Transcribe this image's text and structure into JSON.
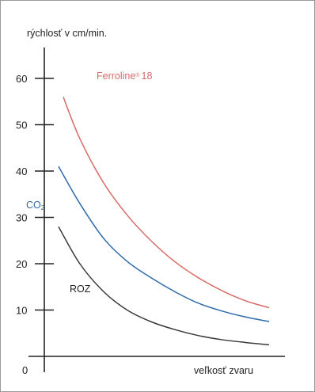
{
  "chart_data": {
    "type": "line",
    "ylabel": "rýchlosť v cm/min.",
    "xlabel": "veľkosť zvaru",
    "origin_label": "0",
    "yticks": [
      10,
      20,
      30,
      40,
      50,
      60
    ],
    "ylim": [
      0,
      65
    ],
    "xlim": [
      0,
      10
    ],
    "series": [
      {
        "name": "Ferroline® 18",
        "label_main": "Ferroline",
        "label_sup": "®",
        "label_tail": "18",
        "color": "#d76b67",
        "x": [
          0.8,
          1.5,
          2.5,
          3.5,
          4.5,
          5.5,
          6.5,
          7.5,
          8.5,
          9.5
        ],
        "y": [
          56,
          47,
          37.5,
          30.5,
          25,
          20.5,
          17,
          14.2,
          12,
          10.5
        ]
      },
      {
        "name": "CO₂",
        "label_main": "CO",
        "label_sub": "2",
        "color": "#2f6aa8",
        "x": [
          0.6,
          1.5,
          2.5,
          3.5,
          4.5,
          5.5,
          6.5,
          7.5,
          8.5,
          9.5
        ],
        "y": [
          41,
          33,
          25.5,
          20.5,
          17,
          14,
          11.5,
          9.8,
          8.5,
          7.5
        ]
      },
      {
        "name": "ROZ",
        "label_main": "ROZ",
        "color": "#3a3a3a",
        "x": [
          0.6,
          1.5,
          2.5,
          3.5,
          4.5,
          5.5,
          6.5,
          7.5,
          8.5,
          9.5
        ],
        "y": [
          28,
          20,
          14,
          10,
          7.5,
          5.8,
          4.5,
          3.6,
          3,
          2.5
        ]
      }
    ]
  }
}
